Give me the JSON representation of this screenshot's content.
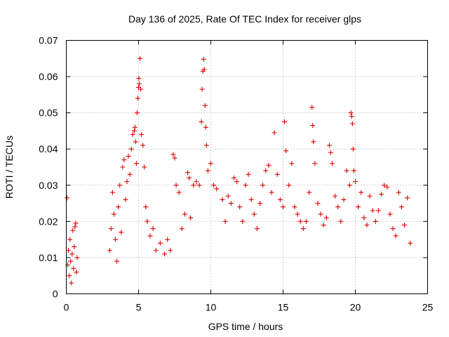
{
  "chart_data": {
    "type": "scatter",
    "title": "Day 136 of 2025, Rate Of TEC Index for receiver glps",
    "xlabel": "GPS time / hours",
    "ylabel": "ROTI / TECUs",
    "xlim": [
      0,
      25
    ],
    "ylim": [
      0,
      0.07
    ],
    "xticks": [
      0,
      5,
      10,
      15,
      20,
      25
    ],
    "yticks": [
      0,
      0.01,
      0.02,
      0.03,
      0.04,
      0.05,
      0.06,
      0.07
    ],
    "xtick_labels": [
      "0",
      "5",
      "10",
      "15",
      "20",
      "25"
    ],
    "ytick_labels": [
      "0",
      "0.01",
      "0.02",
      "0.03",
      "0.04",
      "0.05",
      "0.06",
      "0.07"
    ],
    "grid": true,
    "marker": "+",
    "color": "#e00000",
    "series": [
      {
        "points": [
          [
            0.05,
            0.0265
          ],
          [
            0.1,
            0.008
          ],
          [
            0.15,
            0.012
          ],
          [
            0.2,
            0.005
          ],
          [
            0.25,
            0.015
          ],
          [
            0.3,
            0.009
          ],
          [
            0.35,
            0.003
          ],
          [
            0.4,
            0.011
          ],
          [
            0.45,
            0.0175
          ],
          [
            0.5,
            0.007
          ],
          [
            0.55,
            0.013
          ],
          [
            0.6,
            0.0185
          ],
          [
            0.65,
            0.0195
          ],
          [
            0.7,
            0.006
          ],
          [
            0.75,
            0.01
          ],
          [
            3.0,
            0.012
          ],
          [
            3.1,
            0.018
          ],
          [
            3.2,
            0.028
          ],
          [
            3.3,
            0.022
          ],
          [
            3.4,
            0.015
          ],
          [
            3.5,
            0.009
          ],
          [
            3.6,
            0.024
          ],
          [
            3.7,
            0.03
          ],
          [
            3.8,
            0.017
          ],
          [
            3.9,
            0.035
          ],
          [
            4.0,
            0.037
          ],
          [
            4.1,
            0.026
          ],
          [
            4.2,
            0.031
          ],
          [
            4.3,
            0.038
          ],
          [
            4.4,
            0.033
          ],
          [
            4.5,
            0.04
          ],
          [
            4.6,
            0.044
          ],
          [
            4.7,
            0.045
          ],
          [
            4.75,
            0.046
          ],
          [
            4.8,
            0.042
          ],
          [
            4.85,
            0.036
          ],
          [
            4.9,
            0.05
          ],
          [
            4.95,
            0.054
          ],
          [
            5.0,
            0.057
          ],
          [
            5.02,
            0.0595
          ],
          [
            5.05,
            0.058
          ],
          [
            5.1,
            0.065
          ],
          [
            5.15,
            0.0565
          ],
          [
            5.2,
            0.044
          ],
          [
            5.3,
            0.041
          ],
          [
            5.4,
            0.035
          ],
          [
            5.5,
            0.024
          ],
          [
            5.6,
            0.02
          ],
          [
            5.8,
            0.016
          ],
          [
            6.0,
            0.018
          ],
          [
            6.2,
            0.012
          ],
          [
            6.5,
            0.014
          ],
          [
            6.8,
            0.011
          ],
          [
            7.0,
            0.015
          ],
          [
            7.2,
            0.012
          ],
          [
            7.4,
            0.0385
          ],
          [
            7.5,
            0.0375
          ],
          [
            7.6,
            0.03
          ],
          [
            7.8,
            0.028
          ],
          [
            8.0,
            0.018
          ],
          [
            8.2,
            0.022
          ],
          [
            8.4,
            0.0335
          ],
          [
            8.5,
            0.032
          ],
          [
            8.6,
            0.021
          ],
          [
            8.8,
            0.03
          ],
          [
            9.0,
            0.031
          ],
          [
            9.2,
            0.03
          ],
          [
            9.35,
            0.0475
          ],
          [
            9.4,
            0.0565
          ],
          [
            9.45,
            0.0615
          ],
          [
            9.5,
            0.0648
          ],
          [
            9.55,
            0.062
          ],
          [
            9.6,
            0.052
          ],
          [
            9.65,
            0.046
          ],
          [
            9.7,
            0.041
          ],
          [
            9.8,
            0.034
          ],
          [
            10.0,
            0.036
          ],
          [
            10.2,
            0.03
          ],
          [
            10.4,
            0.029
          ],
          [
            10.8,
            0.026
          ],
          [
            11.0,
            0.02
          ],
          [
            11.2,
            0.027
          ],
          [
            11.4,
            0.025
          ],
          [
            11.6,
            0.032
          ],
          [
            11.8,
            0.031
          ],
          [
            12.0,
            0.024
          ],
          [
            12.2,
            0.02
          ],
          [
            12.4,
            0.03
          ],
          [
            12.6,
            0.033
          ],
          [
            12.8,
            0.026
          ],
          [
            13.0,
            0.022
          ],
          [
            13.2,
            0.018
          ],
          [
            13.4,
            0.025
          ],
          [
            13.6,
            0.03
          ],
          [
            13.8,
            0.034
          ],
          [
            14.0,
            0.0355
          ],
          [
            14.2,
            0.028
          ],
          [
            14.4,
            0.0445
          ],
          [
            14.6,
            0.033
          ],
          [
            14.8,
            0.026
          ],
          [
            15.0,
            0.024
          ],
          [
            15.1,
            0.0475
          ],
          [
            15.2,
            0.0395
          ],
          [
            15.4,
            0.03
          ],
          [
            15.6,
            0.036
          ],
          [
            15.8,
            0.024
          ],
          [
            16.0,
            0.022
          ],
          [
            16.2,
            0.02
          ],
          [
            16.4,
            0.018
          ],
          [
            16.6,
            0.02
          ],
          [
            16.8,
            0.028
          ],
          [
            17.0,
            0.0515
          ],
          [
            17.05,
            0.0465
          ],
          [
            17.1,
            0.042
          ],
          [
            17.2,
            0.036
          ],
          [
            17.4,
            0.025
          ],
          [
            17.6,
            0.022
          ],
          [
            17.8,
            0.019
          ],
          [
            18.0,
            0.021
          ],
          [
            18.2,
            0.041
          ],
          [
            18.3,
            0.039
          ],
          [
            18.4,
            0.036
          ],
          [
            18.6,
            0.027
          ],
          [
            18.8,
            0.024
          ],
          [
            19.0,
            0.02
          ],
          [
            19.2,
            0.026
          ],
          [
            19.4,
            0.034
          ],
          [
            19.6,
            0.03
          ],
          [
            19.7,
            0.05
          ],
          [
            19.75,
            0.049
          ],
          [
            19.8,
            0.047
          ],
          [
            19.85,
            0.04
          ],
          [
            19.9,
            0.034
          ],
          [
            20.0,
            0.031
          ],
          [
            20.2,
            0.024
          ],
          [
            20.4,
            0.028
          ],
          [
            20.6,
            0.021
          ],
          [
            20.8,
            0.019
          ],
          [
            21.0,
            0.027
          ],
          [
            21.2,
            0.023
          ],
          [
            21.4,
            0.02
          ],
          [
            21.6,
            0.023
          ],
          [
            21.8,
            0.0275
          ],
          [
            22.0,
            0.03
          ],
          [
            22.2,
            0.0295
          ],
          [
            22.4,
            0.022
          ],
          [
            22.6,
            0.018
          ],
          [
            22.8,
            0.016
          ],
          [
            23.0,
            0.028
          ],
          [
            23.2,
            0.024
          ],
          [
            23.4,
            0.019
          ],
          [
            23.6,
            0.0265
          ],
          [
            23.8,
            0.014
          ]
        ]
      }
    ]
  }
}
